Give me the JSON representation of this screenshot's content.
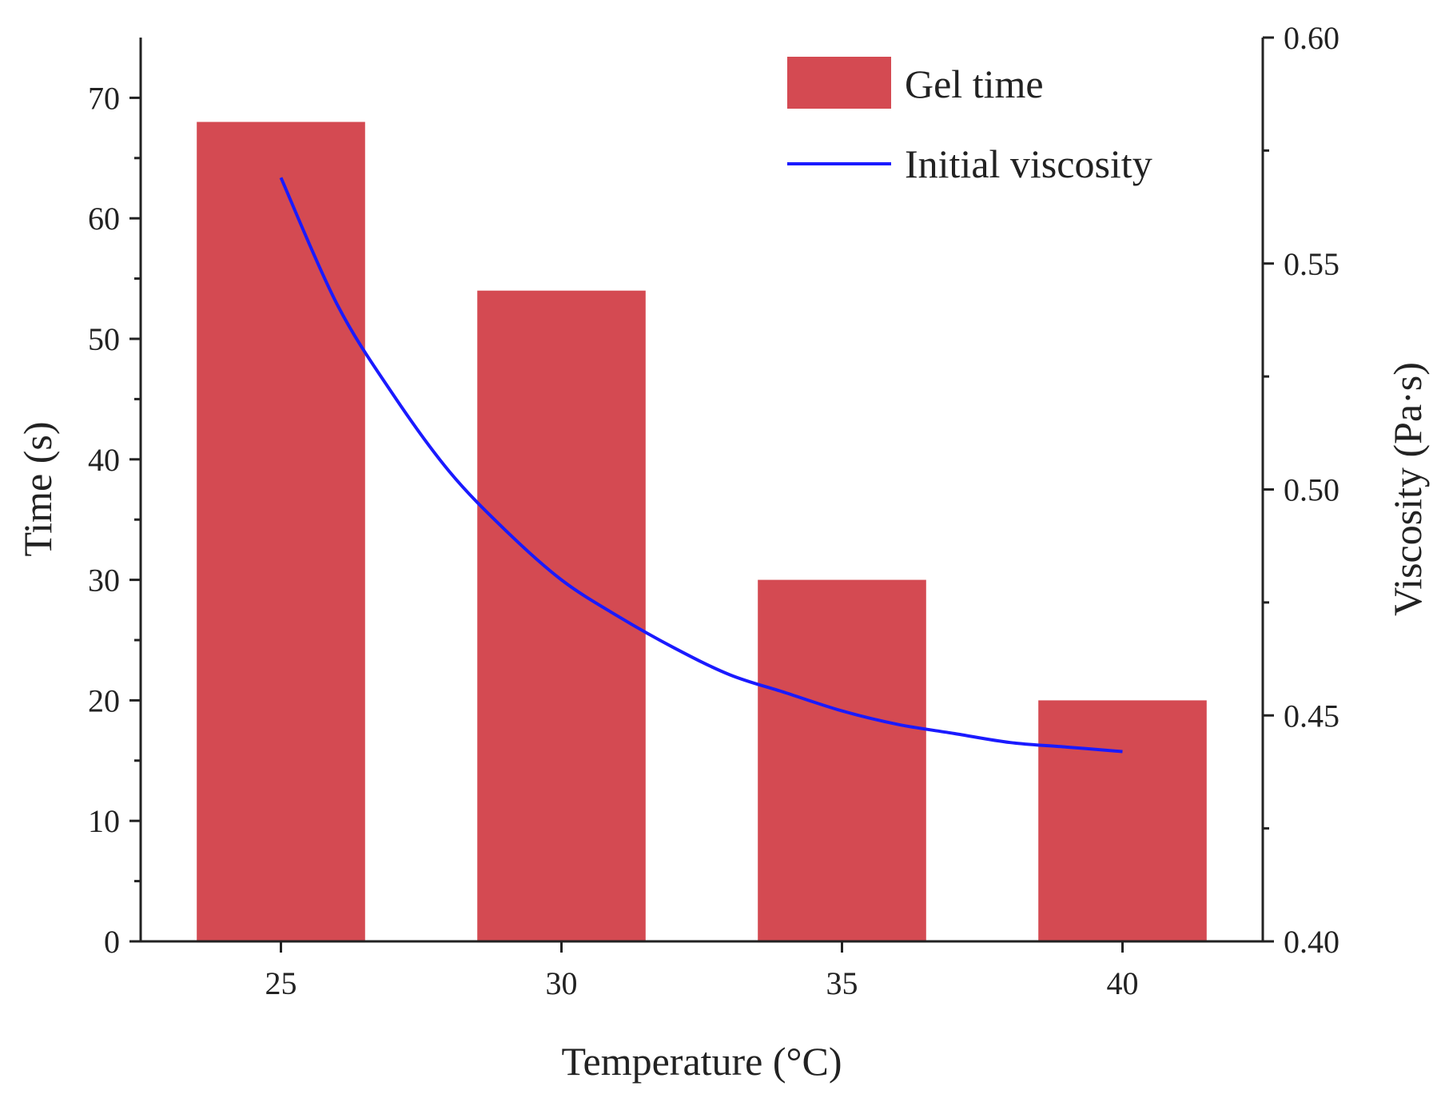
{
  "chart_data": {
    "type": "bar",
    "title": "",
    "xlabel": "Temperature (°C)",
    "ylabel": "Time (s)",
    "y2label": "Viscosity (Pa·s)",
    "categories": [
      "25",
      "30",
      "35",
      "40"
    ],
    "x": [
      25,
      30,
      35,
      40
    ],
    "xlim": [
      22.5,
      42.5
    ],
    "ylim": [
      0,
      75
    ],
    "y2lim": [
      0.4,
      0.6
    ],
    "yticks": [
      0,
      10,
      20,
      30,
      40,
      50,
      60,
      70
    ],
    "y2ticks": [
      "0.40",
      "0.45",
      "0.50",
      "0.55",
      "0.60"
    ],
    "legend_position": "top-right",
    "grid": false,
    "series": [
      {
        "name": "Gel time",
        "type": "bar",
        "axis": "left",
        "color": "#d44a52",
        "values": [
          68,
          54,
          30,
          20
        ]
      },
      {
        "name": "Initial viscosity",
        "type": "line",
        "axis": "right",
        "color": "#1a1aff",
        "x": [
          25,
          26,
          27,
          28,
          29,
          30,
          31,
          32,
          33,
          34,
          35,
          36,
          37,
          38,
          39,
          40
        ],
        "values": [
          0.569,
          0.541,
          0.521,
          0.504,
          0.491,
          0.48,
          0.472,
          0.465,
          0.459,
          0.455,
          0.451,
          0.448,
          0.446,
          0.444,
          0.443,
          0.442
        ]
      }
    ]
  }
}
